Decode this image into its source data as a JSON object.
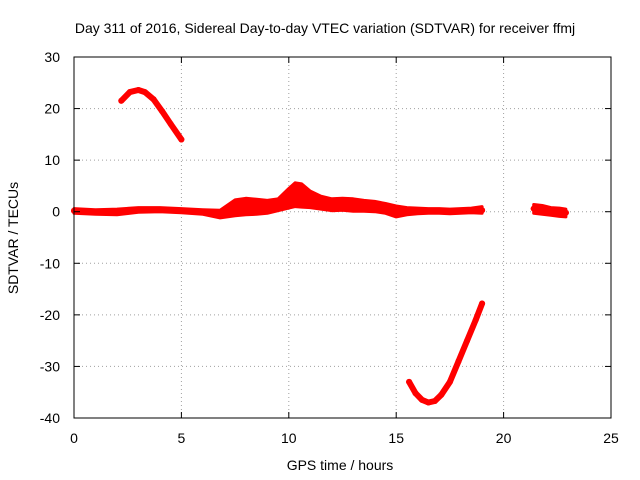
{
  "chart_data": {
    "type": "scatter",
    "title": "Day 311 of 2016, Sidereal Day-to-day VTEC variation (SDTVAR) for receiver ffmj",
    "xlabel": "GPS time / hours",
    "ylabel": "SDTVAR / TECUs",
    "xlim": [
      0,
      25
    ],
    "ylim": [
      -40,
      30
    ],
    "xticks": [
      0,
      5,
      10,
      15,
      20,
      25
    ],
    "yticks": [
      -40,
      -30,
      -20,
      -10,
      0,
      10,
      20,
      30
    ],
    "grid": true,
    "color": "#ff0000",
    "series": [
      {
        "name": "arc-high-early",
        "x": [
          2.2,
          2.6,
          3.0,
          3.3,
          3.7,
          4.1,
          4.5,
          5.0
        ],
        "y": [
          21.5,
          23.2,
          23.6,
          23.2,
          21.8,
          19.5,
          17.0,
          14.0
        ]
      },
      {
        "name": "near-zero-band",
        "x": [
          0.0,
          1.0,
          2.0,
          3.0,
          4.0,
          5.0,
          6.0,
          6.8,
          7.5,
          8.0,
          8.5,
          9.0,
          9.5,
          10.0,
          10.3,
          10.6,
          11.0,
          11.5,
          12.0,
          12.5,
          13.0,
          13.5,
          14.0,
          14.5,
          15.0,
          15.5,
          16.0,
          16.5,
          17.0,
          17.5,
          18.0,
          18.5,
          19.0
        ],
        "y": [
          0.2,
          0.0,
          0.0,
          0.3,
          0.4,
          0.2,
          0.0,
          -0.3,
          0.5,
          0.8,
          0.8,
          1.0,
          1.5,
          2.5,
          3.0,
          3.0,
          2.5,
          2.0,
          1.5,
          1.5,
          1.3,
          1.2,
          1.0,
          0.8,
          0.3,
          0.2,
          0.1,
          0.2,
          0.1,
          0.0,
          0.1,
          0.2,
          0.3
        ],
        "upper": [
          0.6,
          0.4,
          0.5,
          0.8,
          0.8,
          0.6,
          0.4,
          0.3,
          2.3,
          2.6,
          2.4,
          2.2,
          2.5,
          4.5,
          5.6,
          5.4,
          4.0,
          3.0,
          2.5,
          2.6,
          2.5,
          2.2,
          2.0,
          1.6,
          1.1,
          0.8,
          0.7,
          0.6,
          0.6,
          0.5,
          0.6,
          0.7,
          1.0
        ],
        "lower": [
          -0.3,
          -0.5,
          -0.6,
          -0.1,
          0.0,
          -0.2,
          -0.5,
          -1.2,
          -0.8,
          -0.6,
          -0.5,
          -0.3,
          0.2,
          0.7,
          1.0,
          0.9,
          0.8,
          0.5,
          0.2,
          0.3,
          0.1,
          0.1,
          0.0,
          -0.3,
          -1.0,
          -0.6,
          -0.4,
          -0.3,
          -0.3,
          -0.4,
          -0.3,
          -0.2,
          -0.3
        ]
      },
      {
        "name": "late-cluster",
        "x": [
          21.4,
          21.8,
          22.2,
          22.6,
          22.9
        ],
        "y": [
          0.6,
          0.4,
          0.1,
          0.0,
          -0.2
        ],
        "upper": [
          1.4,
          1.2,
          0.8,
          0.7,
          0.5
        ],
        "lower": [
          -0.3,
          -0.5,
          -0.7,
          -0.9,
          -1.0
        ]
      },
      {
        "name": "arc-low-late",
        "x": [
          15.6,
          15.9,
          16.2,
          16.5,
          16.8,
          17.1,
          17.5,
          17.9,
          18.3,
          18.7,
          19.0
        ],
        "y": [
          -33.0,
          -35.2,
          -36.5,
          -37.0,
          -36.7,
          -35.5,
          -33.0,
          -29.0,
          -25.0,
          -21.0,
          -17.8
        ]
      }
    ]
  }
}
